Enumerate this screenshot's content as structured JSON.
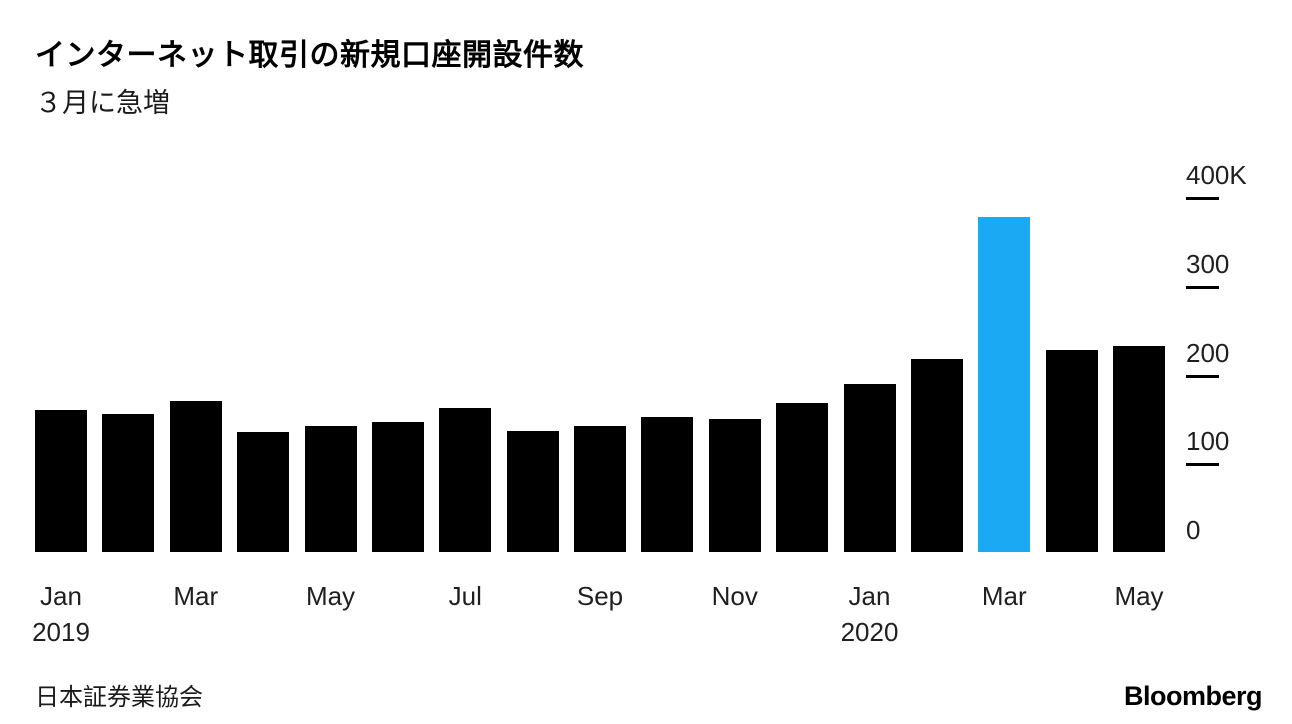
{
  "header": {
    "title": "インターネット取引の新規口座開設件数",
    "subtitle": "３月に急増"
  },
  "footer": {
    "source": "日本証券業協会",
    "brand": "Bloomberg"
  },
  "chart_data": {
    "type": "bar",
    "title": "インターネット取引の新規口座開設件数",
    "subtitle": "３月に急増",
    "source": "日本証券業協会",
    "unit": "thousands of new accounts (K)",
    "x": [
      "Jan 2019",
      "Feb 2019",
      "Mar 2019",
      "Apr 2019",
      "May 2019",
      "Jun 2019",
      "Jul 2019",
      "Aug 2019",
      "Sep 2019",
      "Oct 2019",
      "Nov 2019",
      "Dec 2019",
      "Jan 2020",
      "Feb 2020",
      "Mar 2020",
      "Apr 2020",
      "May 2020"
    ],
    "values": [
      160,
      156,
      170,
      135,
      142,
      147,
      162,
      136,
      142,
      152,
      150,
      168,
      190,
      218,
      378,
      228,
      232
    ],
    "highlight_index": 14,
    "bar_color": "#000000",
    "highlight_color": "#1aa9f2",
    "ylim": [
      0,
      440
    ],
    "grid": false,
    "legend": "none",
    "y_axis_side": "right",
    "y_ticks": [
      {
        "label": "400K",
        "value": 400
      },
      {
        "label": "300",
        "value": 300
      },
      {
        "label": "200",
        "value": 200
      },
      {
        "label": "100",
        "value": 100
      },
      {
        "label": "0",
        "value": 0
      }
    ],
    "x_ticks": [
      {
        "index": 0,
        "label": "Jan",
        "year": "2019"
      },
      {
        "index": 2,
        "label": "Mar",
        "year": ""
      },
      {
        "index": 4,
        "label": "May",
        "year": ""
      },
      {
        "index": 6,
        "label": "Jul",
        "year": ""
      },
      {
        "index": 8,
        "label": "Sep",
        "year": ""
      },
      {
        "index": 10,
        "label": "Nov",
        "year": ""
      },
      {
        "index": 12,
        "label": "Jan",
        "year": "2020"
      },
      {
        "index": 14,
        "label": "Mar",
        "year": ""
      },
      {
        "index": 16,
        "label": "May",
        "year": ""
      }
    ]
  }
}
